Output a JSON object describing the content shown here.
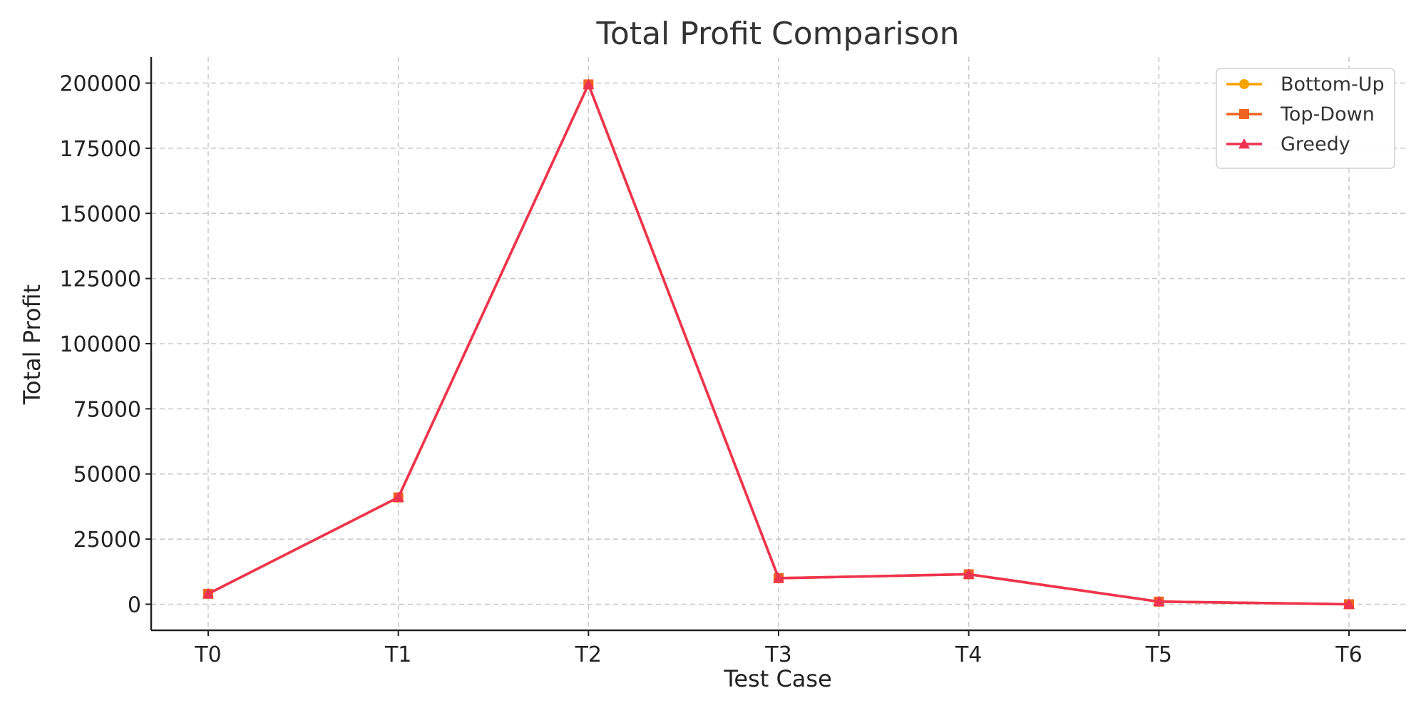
{
  "chart_data": {
    "type": "line",
    "title": "Total Profit Comparison",
    "xlabel": "Test Case",
    "ylabel": "Total Profit",
    "categories": [
      "T0",
      "T1",
      "T2",
      "T3",
      "T4",
      "T5",
      "T6"
    ],
    "ylim": [
      -10000,
      210000
    ],
    "yticks": [
      0,
      25000,
      50000,
      75000,
      100000,
      125000,
      150000,
      175000,
      200000
    ],
    "grid": true,
    "legend_position": "top-right",
    "series": [
      {
        "name": "Bottom-Up",
        "color": "#f5a300",
        "marker": "circle",
        "values": [
          4000,
          41000,
          199500,
          10000,
          11500,
          1000,
          0
        ]
      },
      {
        "name": "Top-Down",
        "color": "#ef6321",
        "marker": "square",
        "values": [
          4000,
          41000,
          199500,
          10000,
          11500,
          1000,
          0
        ]
      },
      {
        "name": "Greedy",
        "color": "#ee3350",
        "marker": "triangle",
        "values": [
          4000,
          41000,
          199500,
          10000,
          11500,
          1000,
          0
        ]
      }
    ]
  }
}
